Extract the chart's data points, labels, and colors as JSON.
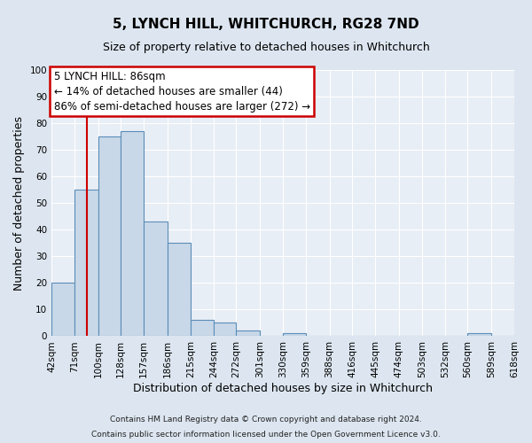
{
  "title": "5, LYNCH HILL, WHITCHURCH, RG28 7ND",
  "subtitle": "Size of property relative to detached houses in Whitchurch",
  "xlabel": "Distribution of detached houses by size in Whitchurch",
  "ylabel": "Number of detached properties",
  "footer_lines": [
    "Contains HM Land Registry data © Crown copyright and database right 2024.",
    "Contains public sector information licensed under the Open Government Licence v3.0."
  ],
  "bin_edges": [
    42,
    71,
    100,
    128,
    157,
    186,
    215,
    244,
    272,
    301,
    330,
    359,
    388,
    416,
    445,
    474,
    503,
    532,
    560,
    589,
    618
  ],
  "bar_heights": [
    20,
    55,
    75,
    77,
    43,
    35,
    6,
    5,
    2,
    0,
    1,
    0,
    0,
    0,
    0,
    0,
    0,
    0,
    1,
    0
  ],
  "bar_color": "#c8d8e8",
  "bar_edge_color": "#5b8db8",
  "vline_x": 86,
  "vline_color": "#cc0000",
  "annotation_line1": "5 LYNCH HILL: 86sqm",
  "annotation_line2": "← 14% of detached houses are smaller (44)",
  "annotation_line3": "86% of semi-detached houses are larger (272) →",
  "ylim": [
    0,
    100
  ],
  "yticks": [
    0,
    10,
    20,
    30,
    40,
    50,
    60,
    70,
    80,
    90,
    100
  ],
  "background_color": "#dde6f0",
  "plot_background_color": "#e8eef5",
  "grid_color": "#ffffff",
  "title_fontsize": 11,
  "subtitle_fontsize": 9,
  "axis_label_fontsize": 9,
  "tick_label_fontsize": 7.5,
  "annotation_fontsize": 8.5,
  "footer_fontsize": 6.5
}
